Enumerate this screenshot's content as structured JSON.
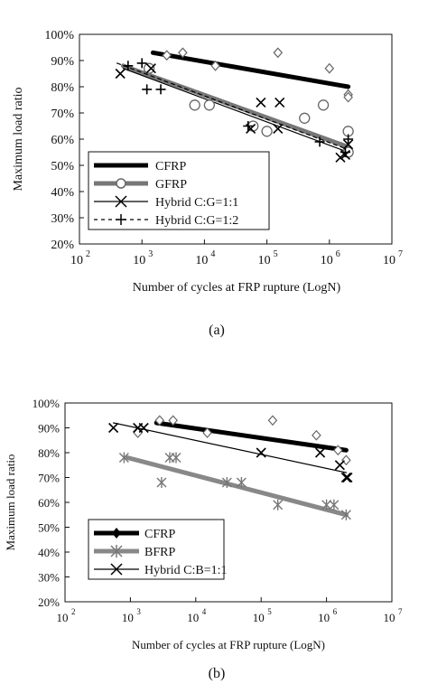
{
  "chart_data": [
    {
      "type": "scatter",
      "caption": "(a)",
      "xlabel": "Number of cycles at FRP rupture (LogN)",
      "ylabel": "Maximum load ratio",
      "xscale": "log",
      "xlim": [
        100,
        10000000
      ],
      "ylim": [
        20,
        100
      ],
      "x_ticks": [
        "10",
        "10",
        "10",
        "10",
        "10",
        "10"
      ],
      "x_tick_exponents": [
        "2",
        "3",
        "4",
        "5",
        "6",
        "7"
      ],
      "y_ticks": [
        "20%",
        "30%",
        "40%",
        "50%",
        "60%",
        "70%",
        "80%",
        "90%",
        "100%"
      ],
      "grid": false,
      "legend_position": "bottom-left",
      "series": [
        {
          "name": "CFRP",
          "marker": "diamond",
          "color": "#000000",
          "points": [
            [
              2500,
              92
            ],
            [
              4500,
              93
            ],
            [
              15000,
              88
            ],
            [
              150000,
              93
            ],
            [
              1000000,
              87
            ],
            [
              2000000,
              77
            ],
            [
              2000000,
              76
            ]
          ],
          "trend": [
            [
              1500,
              93
            ],
            [
              2000000,
              80
            ]
          ]
        },
        {
          "name": "GFRP",
          "marker": "circle",
          "color": "#777777",
          "points": [
            [
              1300,
              87
            ],
            [
              7000,
              73
            ],
            [
              12000,
              73
            ],
            [
              60000,
              65
            ],
            [
              100000,
              63
            ],
            [
              400000,
              68
            ],
            [
              800000,
              73
            ],
            [
              2000000,
              63
            ],
            [
              2000000,
              55
            ]
          ],
          "trend": [
            [
              500,
              88
            ],
            [
              2000000,
              57
            ]
          ]
        },
        {
          "name": "Hybrid C:G=1:1",
          "marker": "x",
          "color": "#000000",
          "points": [
            [
              450,
              85
            ],
            [
              1400,
              87
            ],
            [
              55000,
              64
            ],
            [
              80000,
              74
            ],
            [
              160000,
              74
            ],
            [
              150000,
              64
            ],
            [
              1500000,
              53
            ],
            [
              1800000,
              54
            ],
            [
              2000000,
              58
            ]
          ],
          "trend": [
            [
              500,
              87
            ],
            [
              2000000,
              55
            ]
          ]
        },
        {
          "name": "Hybrid C:G=1:2",
          "marker": "plus",
          "color": "#000000",
          "points": [
            [
              600,
              88
            ],
            [
              1000,
              89
            ],
            [
              1200,
              79
            ],
            [
              2000,
              79
            ],
            [
              50000,
              65
            ],
            [
              700000,
              59
            ],
            [
              1800000,
              55
            ],
            [
              2000000,
              60
            ]
          ],
          "trend": [
            [
              400,
              89
            ],
            [
              2000000,
              56
            ]
          ]
        }
      ]
    },
    {
      "type": "scatter",
      "caption": "(b)",
      "xlabel": "Number of cycles at FRP rupture (LogN)",
      "ylabel": "Maximum load ratio",
      "xscale": "log",
      "xlim": [
        100,
        10000000
      ],
      "ylim": [
        20,
        100
      ],
      "x_ticks": [
        "10",
        "10",
        "10",
        "10",
        "10",
        "10"
      ],
      "x_tick_exponents": [
        "2",
        "3",
        "4",
        "5",
        "6",
        "7"
      ],
      "y_ticks": [
        "20%",
        "30%",
        "40%",
        "50%",
        "60%",
        "70%",
        "80%",
        "90%",
        "100%"
      ],
      "grid": false,
      "legend_position": "bottom-left",
      "series": [
        {
          "name": "CFRP",
          "marker": "diamond",
          "color": "#000000",
          "points": [
            [
              1300,
              88
            ],
            [
              2800,
              93
            ],
            [
              4500,
              93
            ],
            [
              15000,
              88
            ],
            [
              150000,
              93
            ],
            [
              700000,
              87
            ],
            [
              1500000,
              81
            ],
            [
              2000000,
              77
            ]
          ],
          "trend": [
            [
              2500,
              92
            ],
            [
              2000000,
              81
            ]
          ]
        },
        {
          "name": "BFRP",
          "marker": "asterisk",
          "color": "#888888",
          "points": [
            [
              800,
              78
            ],
            [
              3000,
              68
            ],
            [
              4000,
              78
            ],
            [
              5000,
              78
            ],
            [
              30000,
              68
            ],
            [
              50000,
              68
            ],
            [
              180000,
              59
            ],
            [
              1000000,
              59
            ],
            [
              1300000,
              59
            ],
            [
              2000000,
              55
            ]
          ],
          "trend": [
            [
              900,
              78
            ],
            [
              2000000,
              55
            ]
          ]
        },
        {
          "name": "Hybrid C:B=1:1",
          "marker": "x",
          "color": "#000000",
          "points": [
            [
              550,
              90
            ],
            [
              1300,
              90
            ],
            [
              1600,
              90
            ],
            [
              100000,
              80
            ],
            [
              800000,
              80
            ],
            [
              1600000,
              75
            ],
            [
              2000000,
              70
            ],
            [
              2100000,
              70
            ]
          ],
          "trend": [
            [
              550,
              92
            ],
            [
              2000000,
              72
            ]
          ]
        }
      ]
    }
  ]
}
